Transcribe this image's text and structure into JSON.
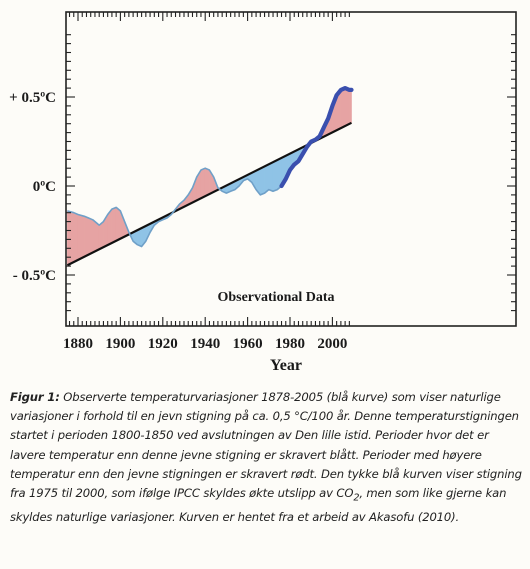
{
  "chart_data": {
    "type": "line",
    "annotation": "Observational Data",
    "xlabel": "Year",
    "ylabel": "",
    "xlim": [
      1875,
      2009
    ],
    "ylim": [
      -0.75,
      0.9
    ],
    "x_ticks": [
      1880,
      1900,
      1920,
      1940,
      1960,
      1980,
      2000
    ],
    "x_tick_labels": [
      "1880",
      "1900",
      "1920",
      "1940",
      "1960",
      "1980",
      "2000"
    ],
    "y_ticks": [
      -0.5,
      0,
      0.5
    ],
    "y_tick_labels": [
      "- 0.5ºC",
      "0ºC",
      "+ 0.5ºC"
    ],
    "grid": false,
    "colors": {
      "curve": "#6fa0c8",
      "recent_curve": "#3a4fae",
      "trend": "#111111",
      "above_fill": "#e6a3a3",
      "below_fill": "#8fc3e6"
    },
    "trend_line": {
      "x": [
        1875,
        2009
      ],
      "y": [
        -0.445,
        0.355
      ]
    },
    "series": [
      {
        "values_x": [
          1875,
          1878,
          1880,
          1883,
          1885,
          1887,
          1889,
          1890,
          1892,
          1894,
          1896,
          1898,
          1900,
          1902,
          1904,
          1906,
          1908,
          1910,
          1912,
          1914,
          1916,
          1918,
          1920,
          1922,
          1924,
          1926,
          1928,
          1930,
          1932,
          1934,
          1936,
          1938,
          1940,
          1942,
          1944,
          1946,
          1948,
          1950,
          1952,
          1954,
          1956,
          1958,
          1960,
          1962,
          1964,
          1966,
          1968,
          1970,
          1972,
          1974,
          1976,
          1978,
          1980,
          1982,
          1984,
          1986,
          1988,
          1990,
          1992,
          1994,
          1996,
          1998,
          2000,
          2002,
          2004,
          2006,
          2008,
          2009
        ],
        "values_y": [
          -0.14,
          -0.15,
          -0.16,
          -0.17,
          -0.18,
          -0.19,
          -0.21,
          -0.22,
          -0.2,
          -0.16,
          -0.13,
          -0.12,
          -0.14,
          -0.2,
          -0.26,
          -0.31,
          -0.33,
          -0.34,
          -0.31,
          -0.26,
          -0.22,
          -0.2,
          -0.19,
          -0.18,
          -0.16,
          -0.13,
          -0.1,
          -0.08,
          -0.05,
          -0.01,
          0.05,
          0.09,
          0.1,
          0.09,
          0.05,
          -0.01,
          -0.03,
          -0.04,
          -0.03,
          -0.02,
          0.0,
          0.03,
          0.04,
          0.02,
          -0.02,
          -0.05,
          -0.04,
          -0.02,
          -0.03,
          -0.02,
          0.0,
          0.04,
          0.09,
          0.12,
          0.14,
          0.18,
          0.22,
          0.25,
          0.26,
          0.28,
          0.33,
          0.38,
          0.45,
          0.51,
          0.54,
          0.55,
          0.54,
          0.54
        ]
      }
    ],
    "bold_segment_from_x": 1975
  },
  "caption": {
    "lead": "Figur 1:",
    "text": "Observerte temperaturvariasjoner 1878-2005 (blå kurve) som viser naturlige variasjoner i forhold til en jevn stigning på ca. 0,5 °C/100 år. Denne temperaturstigningen startet i perioden 1800-1850 ved avslutningen av Den lille istid. Perioder hvor det er lavere temperatur enn denne jevne stigning er skravert blått. Perioder med høyere temperatur enn den jevne stigningen er skravert rødt. Den tykke blå kurven viser stigning fra 1975 til 2000, som ifølge IPCC skyldes økte utslipp av CO",
    "co2_sub": "2",
    "text_after": ", men som like gjerne kan skyldes naturlige variasjoner. Kurven er hentet fra et arbeid av Akasofu (2010)."
  }
}
